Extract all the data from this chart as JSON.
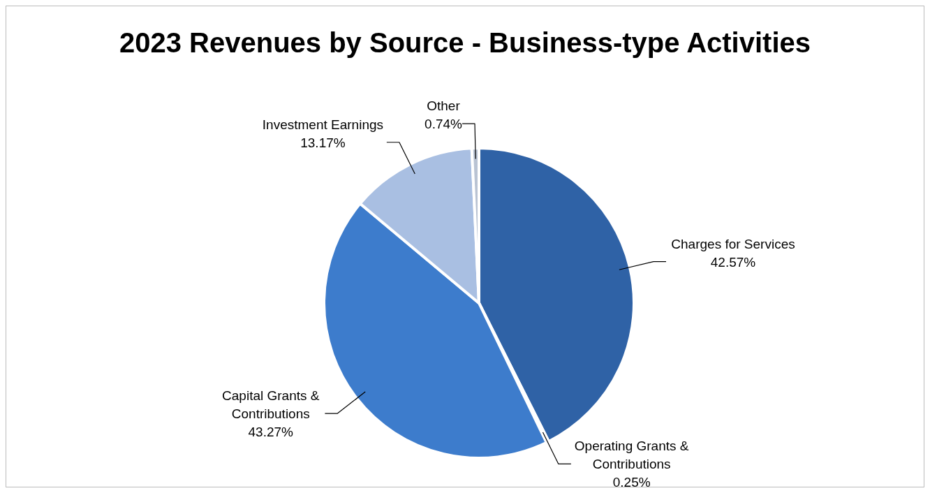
{
  "chart_data": {
    "type": "pie",
    "title": "2023 Revenues by Source - Business-type Activities",
    "categories": [
      "Charges for Services",
      "Operating Grants & Contributions",
      "Capital Grants & Contributions",
      "Investment Earnings",
      "Other"
    ],
    "values": [
      42.57,
      0.25,
      43.27,
      13.17,
      0.74
    ],
    "value_labels": [
      "42.57%",
      "0.25%",
      "43.27%",
      "13.17%",
      "0.74%"
    ],
    "colors": [
      "#2f62a6",
      "#24497e",
      "#3d7ccc",
      "#a9bfe2",
      "#b9c3d3"
    ],
    "legend": false
  }
}
